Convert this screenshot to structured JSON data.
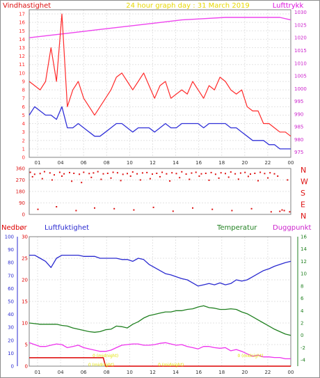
{
  "colors": {
    "background": "#ffffff",
    "frame": "#808080",
    "grid": "#e3e3e3",
    "wind_max": "#ff2a2a",
    "wind_avg": "#3030d8",
    "pressure": "#ee44ee",
    "title": "#e8d800",
    "direction": "#dd1111",
    "humidity": "#2a2ad0",
    "temperature": "#208020",
    "dewpoint": "#ee33ee",
    "rain": "#dd0000",
    "rain_label": "#e0e000"
  },
  "header": {
    "title": "24 hour graph day : 31 March 2019",
    "left_label": "Vindhastighet",
    "right_label": "Lufttrykk"
  },
  "lower_labels": {
    "rain": "Nedbør",
    "humidity": "Luftfuktighet",
    "temperature": "Temperatur",
    "dewpoint": "Duggpunkt"
  },
  "chart_data": [
    {
      "type": "line",
      "x_ticks": [
        "01",
        "04",
        "06",
        "08",
        "10",
        "12",
        "14",
        "16",
        "18",
        "20",
        "22",
        "00"
      ],
      "x_range": [
        0,
        24
      ],
      "left_axis": {
        "ticks": [
          "0",
          "1",
          "2",
          "3",
          "4",
          "5",
          "6",
          "7",
          "8",
          "9",
          "10",
          "11",
          "12",
          "13",
          "14",
          "15",
          "16",
          "17"
        ],
        "range": [
          0,
          17.5
        ]
      },
      "right_axis": {
        "ticks": [
          "975",
          "980",
          "985",
          "990",
          "995",
          "1000",
          "1005",
          "1010",
          "1015",
          "1020",
          "1025",
          "1030"
        ],
        "range": [
          973,
          1031
        ]
      },
      "series": [
        {
          "key": "wind_max",
          "axis": "left",
          "x": [
            0,
            0.5,
            1,
            1.5,
            2,
            2.5,
            3,
            3.5,
            4,
            4.5,
            5,
            5.5,
            6,
            6.5,
            7,
            7.5,
            8,
            8.5,
            9,
            9.5,
            10,
            10.5,
            11,
            11.5,
            12,
            12.5,
            13,
            13.5,
            14,
            14.5,
            15,
            15.5,
            16,
            16.5,
            17,
            17.5,
            18,
            18.5,
            19,
            19.5,
            20,
            20.5,
            21,
            21.5,
            22,
            22.5,
            23,
            23.5,
            24
          ],
          "values": [
            9,
            8.5,
            8,
            9,
            13,
            9,
            17,
            6,
            8,
            9,
            7,
            6,
            5,
            6,
            7,
            8,
            9.5,
            10,
            9,
            8,
            9,
            10,
            8.5,
            7,
            8.5,
            9,
            7,
            7.5,
            8,
            7.5,
            9,
            8,
            7,
            8.5,
            8,
            9.5,
            9,
            8,
            7.5,
            8,
            6,
            5.5,
            5.5,
            4,
            4,
            3.5,
            3,
            3,
            2.5
          ]
        },
        {
          "key": "wind_avg",
          "axis": "left",
          "x": [
            0,
            0.5,
            1,
            1.5,
            2,
            2.5,
            3,
            3.5,
            4,
            4.5,
            5,
            5.5,
            6,
            6.5,
            7,
            7.5,
            8,
            8.5,
            9,
            9.5,
            10,
            10.5,
            11,
            11.5,
            12,
            12.5,
            13,
            13.5,
            14,
            14.5,
            15,
            15.5,
            16,
            16.5,
            17,
            17.5,
            18,
            18.5,
            19,
            19.5,
            20,
            20.5,
            21,
            21.5,
            22,
            22.5,
            23,
            23.5,
            24
          ],
          "values": [
            5,
            6,
            5.5,
            5,
            5,
            4.5,
            6,
            3.5,
            3.5,
            4,
            3.5,
            3,
            2.5,
            2.5,
            3,
            3.5,
            4,
            4,
            3.5,
            3,
            3.5,
            3.5,
            3.5,
            3,
            3.5,
            4,
            3.5,
            3.5,
            4,
            4,
            4,
            4,
            3.5,
            4,
            4,
            4,
            4,
            3.5,
            3.5,
            3,
            2.5,
            2,
            2,
            2,
            1.5,
            1.5,
            1,
            1,
            1
          ]
        },
        {
          "key": "pressure",
          "axis": "right",
          "x": [
            0,
            2,
            4,
            6,
            8,
            10,
            12,
            14,
            16,
            18,
            20,
            22,
            23,
            24
          ],
          "values": [
            1020,
            1021,
            1022,
            1023,
            1024,
            1025,
            1026,
            1027,
            1027.5,
            1028,
            1028,
            1028,
            1028,
            1027
          ]
        }
      ]
    },
    {
      "type": "scatter",
      "x_range": [
        0,
        24
      ],
      "left_axis": {
        "ticks": [
          "0",
          "45",
          "90",
          "135",
          "180",
          "225",
          "270",
          "315",
          "360"
        ],
        "range": [
          0,
          360
        ]
      },
      "right_axis": {
        "ticks": [
          "N",
          "W",
          "S",
          "E",
          "N"
        ]
      },
      "series": [
        {
          "key": "direction",
          "x": [
            0.1,
            0.5,
            1.0,
            1.4,
            1.9,
            2.3,
            2.8,
            3.2,
            3.7,
            4.1,
            4.6,
            5.0,
            5.5,
            5.9,
            6.3,
            6.8,
            7.2,
            7.7,
            8.1,
            8.6,
            9.0,
            9.5,
            9.9,
            10.4,
            10.8,
            11.3,
            11.7,
            12.2,
            12.6,
            13.1,
            13.5,
            14.0,
            14.4,
            14.9,
            15.3,
            15.8,
            16.2,
            16.7,
            17.1,
            17.6,
            18.0,
            18.5,
            18.9,
            19.4,
            19.8,
            20.3,
            20.7,
            21.2,
            21.6,
            22.1,
            22.5,
            23.0,
            23.4,
            23.9,
            0.3,
            1.2,
            2.1,
            3.0,
            3.9,
            4.8,
            5.7,
            6.6,
            7.5,
            8.4,
            9.3,
            10.2,
            11.1,
            12.0,
            12.9,
            13.8,
            14.7,
            15.6,
            16.5,
            17.4,
            18.3,
            19.2,
            20.1,
            21.0,
            21.9,
            22.8,
            23.7,
            0.8,
            2.5,
            4.3,
            6.0,
            7.8,
            9.6,
            11.4,
            13.2,
            15.0,
            16.8,
            18.6,
            20.4,
            22.2,
            23.2
          ],
          "values": [
            330,
            315,
            320,
            335,
            325,
            310,
            330,
            318,
            328,
            322,
            315,
            330,
            320,
            325,
            335,
            318,
            322,
            330,
            326,
            314,
            320,
            332,
            318,
            325,
            328,
            316,
            322,
            330,
            318,
            326,
            320,
            334,
            316,
            324,
            330,
            318,
            322,
            328,
            315,
            326,
            320,
            332,
            318,
            324,
            329,
            316,
            322,
            330,
            320,
            326,
            318,
            24,
            30,
            20,
            295,
            280,
            270,
            300,
            260,
            250,
            290,
            275,
            285,
            265,
            300,
            270,
            280,
            295,
            262,
            288,
            275,
            300,
            268,
            284,
            292,
            276,
            298,
            264,
            286,
            300,
            270,
            40,
            60,
            30,
            50,
            45,
            35,
            55,
            25,
            50,
            40,
            30,
            45,
            20,
            35
          ]
        }
      ]
    },
    {
      "type": "line",
      "x_ticks": [
        "01",
        "04",
        "06",
        "08",
        "10",
        "12",
        "14",
        "16",
        "18",
        "20",
        "22",
        "00"
      ],
      "x_range": [
        0,
        24
      ],
      "axes": {
        "rain": {
          "ticks": [
            "0",
            "10",
            "20",
            "30",
            "40",
            "50",
            "60",
            "70",
            "80",
            "90",
            "100"
          ],
          "range": [
            0,
            100
          ]
        },
        "humidity": {
          "ticks": [
            "0",
            "5",
            "10",
            "15",
            "20",
            "25",
            "30"
          ],
          "range": [
            0,
            30
          ]
        },
        "temperature": {
          "ticks": [
            "-4",
            "-2",
            "0",
            "2",
            "4",
            "6",
            "8",
            "10",
            "12",
            "14",
            "16"
          ],
          "range": [
            -5,
            16
          ]
        }
      },
      "series": [
        {
          "key": "humidity",
          "axis": "temperature",
          "x": [
            0,
            0.5,
            1,
            1.5,
            2,
            2.5,
            3,
            3.5,
            4,
            4.5,
            5,
            5.5,
            6,
            6.5,
            7,
            7.5,
            8,
            8.5,
            9,
            9.5,
            10,
            10.5,
            11,
            11.5,
            12,
            12.5,
            13,
            13.5,
            14,
            14.5,
            15,
            15.5,
            16,
            16.5,
            17,
            17.5,
            18,
            18.5,
            19,
            19.5,
            20,
            20.5,
            21,
            21.5,
            22,
            22.5,
            23,
            23.5,
            24
          ],
          "values": [
            13,
            13,
            12.5,
            12,
            11,
            12.5,
            13,
            13,
            13,
            13,
            12.8,
            12.8,
            12.8,
            12.5,
            12.5,
            12.5,
            12.5,
            12.3,
            12.3,
            12,
            12.5,
            12.3,
            11.5,
            11,
            10.5,
            10,
            9.8,
            9.5,
            9.2,
            9,
            8.5,
            8,
            8.2,
            8.4,
            8.2,
            8.5,
            8.2,
            8.4,
            9,
            8.8,
            9,
            9.5,
            10,
            10.5,
            10.8,
            11.2,
            11.5,
            11.8,
            12
          ]
        },
        {
          "key": "temperature",
          "axis": "temperature",
          "x": [
            0,
            0.5,
            1,
            1.5,
            2,
            2.5,
            3,
            3.5,
            4,
            4.5,
            5,
            5.5,
            6,
            6.5,
            7,
            7.5,
            8,
            8.5,
            9,
            9.5,
            10,
            10.5,
            11,
            11.5,
            12,
            12.5,
            13,
            13.5,
            14,
            14.5,
            15,
            15.5,
            16,
            16.5,
            17,
            17.5,
            18,
            18.5,
            19,
            19.5,
            20,
            20.5,
            21,
            21.5,
            22,
            22.5,
            23,
            23.5,
            24
          ],
          "values": [
            2,
            1.9,
            1.8,
            1.8,
            1.8,
            1.8,
            1.6,
            1.5,
            1.2,
            1,
            0.8,
            0.6,
            0.5,
            0.6,
            0.9,
            1,
            1.5,
            1.4,
            1.2,
            1.8,
            2.2,
            2.8,
            3.2,
            3.4,
            3.6,
            3.8,
            3.8,
            4,
            4,
            4.2,
            4.3,
            4.6,
            4.8,
            4.5,
            4.4,
            4.2,
            4.2,
            4.3,
            4.2,
            3.8,
            3.5,
            3,
            2.5,
            2,
            1.5,
            1,
            0.6,
            0.2,
            0
          ]
        },
        {
          "key": "dewpoint",
          "axis": "temperature",
          "x": [
            0,
            0.5,
            1,
            1.5,
            2,
            2.5,
            3,
            3.5,
            4,
            4.5,
            5,
            5.5,
            6,
            6.5,
            7,
            7.5,
            8,
            8.5,
            9,
            9.5,
            10,
            10.5,
            11,
            11.5,
            12,
            12.5,
            13,
            13.5,
            14,
            14.5,
            15,
            15.5,
            16,
            16.5,
            17,
            17.5,
            18,
            18.5,
            19,
            19.5,
            20,
            20.5,
            21,
            21.5,
            22,
            22.5,
            23,
            23.5,
            24
          ],
          "values": [
            -1.2,
            -1.5,
            -1.8,
            -1.8,
            -1.6,
            -1.4,
            -1.5,
            -2,
            -1.8,
            -1.6,
            -2,
            -2.2,
            -2.4,
            -2.6,
            -2.6,
            -2.4,
            -2,
            -1.6,
            -1.5,
            -1.4,
            -1.4,
            -1.6,
            -1.6,
            -1.5,
            -1.3,
            -1.2,
            -1.4,
            -1.6,
            -1.5,
            -1.8,
            -2,
            -2.2,
            -1.8,
            -1.8,
            -2,
            -2.1,
            -2,
            -2.5,
            -2.3,
            -2.6,
            -3,
            -3.4,
            -3.2,
            -3.5,
            -3.5,
            -3.6,
            -3.6,
            -3.8,
            -3.8
          ]
        },
        {
          "key": "rain",
          "axis": "rain",
          "x": [
            0,
            6.8,
            7,
            24
          ],
          "values": [
            6.5,
            6.5,
            0,
            0
          ]
        }
      ],
      "annotations": [
        {
          "x": 7.0,
          "level": 8,
          "text": "0 (midnight)"
        },
        {
          "x": 6.6,
          "level": 1,
          "text": "0 (midnight)"
        },
        {
          "x": 13.0,
          "level": 1,
          "text": "0 (midnight)"
        },
        {
          "x": 20.3,
          "level": 8,
          "text": "0 (midnight)"
        }
      ]
    }
  ]
}
